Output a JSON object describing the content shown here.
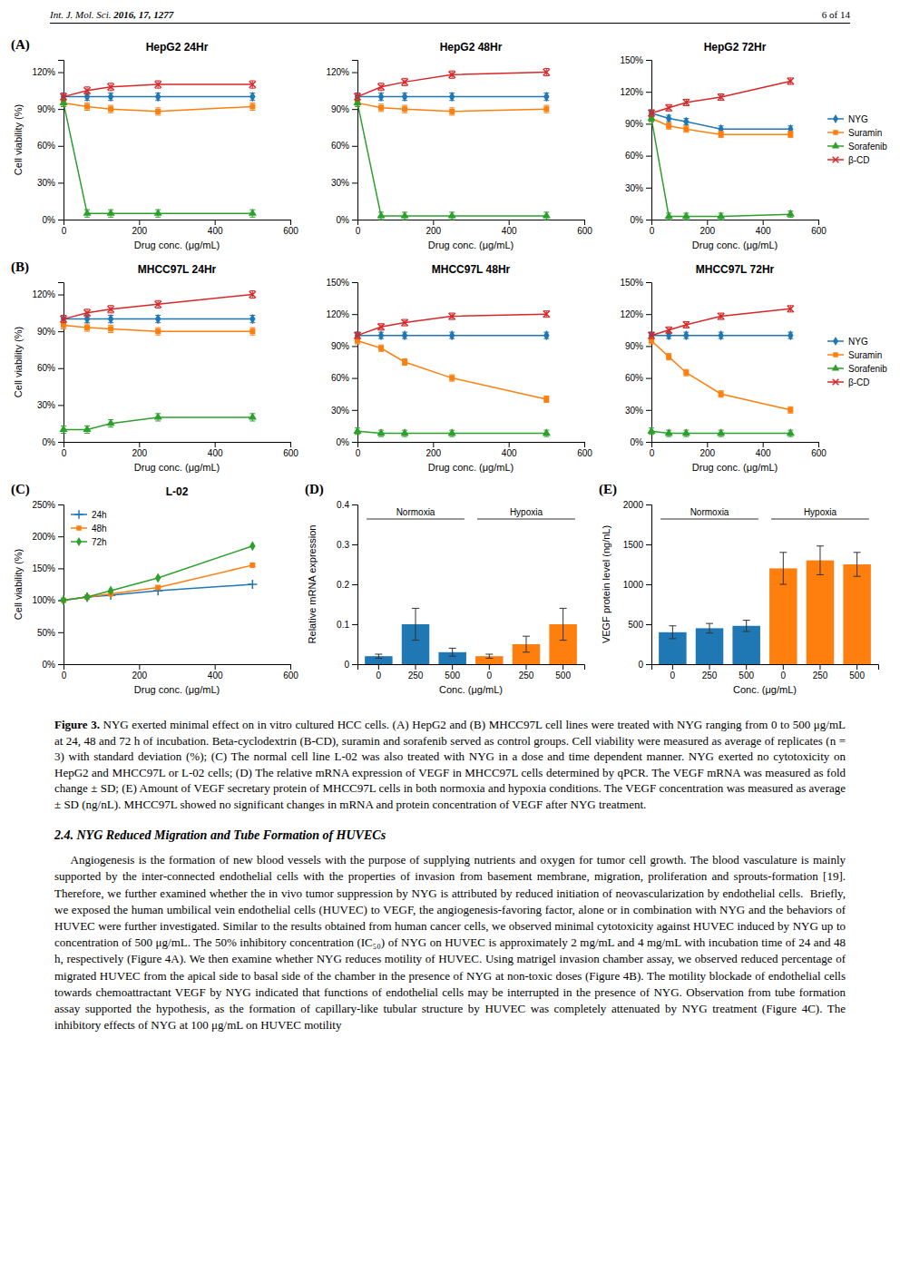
{
  "page_header": {
    "journal": "Int. J. Mol. Sci. ",
    "citation": "2016, 17, 1277",
    "page": "6 of 14"
  },
  "chart_data": [
    {
      "type": "line",
      "title": "HepG2 24Hr",
      "x_label": "Drug conc. (μg/mL)",
      "y_label": "Cell viability (%)",
      "annotations": [
        "(A)"
      ],
      "x": [
        0,
        62.5,
        125,
        250,
        500
      ],
      "xlim": [
        0,
        600
      ],
      "xticks": [
        0,
        200,
        400,
        600
      ],
      "ylim": [
        0,
        130
      ],
      "yticks": [
        {
          "value": 0,
          "label": "0%"
        },
        {
          "value": 30,
          "label": "30%"
        },
        {
          "value": 60,
          "label": "60%"
        },
        {
          "value": 90,
          "label": "90%"
        },
        {
          "value": 120,
          "label": "120%"
        }
      ],
      "series": [
        {
          "marker": "diamond",
          "values": [
            100,
            100,
            100,
            100,
            100
          ],
          "errors": [
            3,
            3,
            3,
            3,
            3
          ]
        },
        {
          "marker": "square",
          "values": [
            95,
            92,
            90,
            88,
            92
          ],
          "errors": [
            3,
            3,
            3,
            3,
            3
          ]
        },
        {
          "marker": "triangle",
          "values": [
            95,
            5,
            5,
            5,
            5
          ],
          "errors": [
            3,
            3,
            3,
            3,
            3
          ]
        },
        {
          "marker": "x",
          "values": [
            100,
            105,
            108,
            110,
            110
          ],
          "errors": [
            3,
            3,
            3,
            3,
            3
          ]
        }
      ]
    },
    {
      "type": "line",
      "title": "HepG2 48Hr",
      "x_label": "Drug conc. (μg/mL)",
      "x": [
        0,
        62.5,
        125,
        250,
        500
      ],
      "xlim": [
        0,
        600
      ],
      "xticks": [
        0,
        200,
        400,
        600
      ],
      "ylim": [
        0,
        130
      ],
      "yticks": [
        {
          "value": 0,
          "label": "0%"
        },
        {
          "value": 30,
          "label": "30%"
        },
        {
          "value": 60,
          "label": "60%"
        },
        {
          "value": 90,
          "label": "90%"
        },
        {
          "value": 120,
          "label": "120%"
        }
      ],
      "series": [
        {
          "marker": "diamond",
          "values": [
            100,
            100,
            100,
            100,
            100
          ],
          "errors": [
            3,
            3,
            3,
            3,
            3
          ]
        },
        {
          "marker": "square",
          "values": [
            95,
            91,
            90,
            88,
            90
          ],
          "errors": [
            3,
            3,
            3,
            3,
            3
          ]
        },
        {
          "marker": "triangle",
          "values": [
            95,
            3,
            3,
            3,
            3
          ],
          "errors": [
            3,
            3,
            3,
            3,
            3
          ]
        },
        {
          "marker": "x",
          "values": [
            100,
            108,
            112,
            118,
            120
          ],
          "errors": [
            3,
            3,
            3,
            3,
            3
          ]
        }
      ]
    },
    {
      "type": "line",
      "title": "HepG2 72Hr",
      "x_label": "Drug conc. (μg/mL)",
      "legend": "right",
      "x": [
        0,
        62.5,
        125,
        250,
        500
      ],
      "xlim": [
        0,
        600
      ],
      "xticks": [
        0,
        200,
        400,
        600
      ],
      "ylim": [
        0,
        150
      ],
      "yticks": [
        {
          "value": 0,
          "label": "0%"
        },
        {
          "value": 30,
          "label": "30%"
        },
        {
          "value": 60,
          "label": "60%"
        },
        {
          "value": 90,
          "label": "90%"
        },
        {
          "value": 120,
          "label": "120%"
        },
        {
          "value": 150,
          "label": "150%"
        }
      ],
      "series": [
        {
          "name": "NYG",
          "marker": "diamond",
          "values": [
            100,
            95,
            92,
            85,
            85
          ],
          "errors": [
            3,
            3,
            3,
            3,
            3
          ]
        },
        {
          "name": "Suramin",
          "marker": "square",
          "values": [
            95,
            88,
            85,
            80,
            80
          ],
          "errors": [
            3,
            3,
            3,
            3,
            3
          ]
        },
        {
          "name": "Sorafenib",
          "marker": "triangle",
          "values": [
            95,
            3,
            3,
            3,
            5
          ],
          "errors": [
            3,
            3,
            3,
            3,
            3
          ]
        },
        {
          "name": "β-CD",
          "marker": "x",
          "values": [
            100,
            105,
            110,
            115,
            130
          ],
          "errors": [
            3,
            3,
            3,
            3,
            3
          ]
        }
      ]
    },
    {
      "type": "line",
      "title": "MHCC97L 24Hr",
      "x_label": "Drug conc. (μg/mL)",
      "y_label": "Cell viability (%)",
      "annotations": [
        "(B)"
      ],
      "x": [
        0,
        62.5,
        125,
        250,
        500
      ],
      "xlim": [
        0,
        600
      ],
      "xticks": [
        0,
        200,
        400,
        600
      ],
      "ylim": [
        0,
        130
      ],
      "yticks": [
        {
          "value": 0,
          "label": "0%"
        },
        {
          "value": 30,
          "label": "30%"
        },
        {
          "value": 60,
          "label": "60%"
        },
        {
          "value": 90,
          "label": "90%"
        },
        {
          "value": 120,
          "label": "120%"
        }
      ],
      "series": [
        {
          "marker": "diamond",
          "values": [
            100,
            100,
            100,
            100,
            100
          ],
          "errors": [
            3,
            3,
            3,
            3,
            3
          ]
        },
        {
          "marker": "square",
          "values": [
            95,
            93,
            92,
            90,
            90
          ],
          "errors": [
            3,
            3,
            3,
            3,
            3
          ]
        },
        {
          "marker": "triangle",
          "values": [
            10,
            10,
            15,
            20,
            20
          ],
          "errors": [
            3,
            3,
            3,
            3,
            3
          ]
        },
        {
          "marker": "x",
          "values": [
            100,
            105,
            108,
            112,
            120
          ],
          "errors": [
            3,
            3,
            3,
            3,
            3
          ]
        }
      ]
    },
    {
      "type": "line",
      "title": "MHCC97L 48Hr",
      "x_label": "Drug conc. (μg/mL)",
      "x": [
        0,
        62.5,
        125,
        250,
        500
      ],
      "xlim": [
        0,
        600
      ],
      "xticks": [
        0,
        200,
        400,
        600
      ],
      "ylim": [
        0,
        150
      ],
      "yticks": [
        {
          "value": 0,
          "label": "0%"
        },
        {
          "value": 30,
          "label": "30%"
        },
        {
          "value": 60,
          "label": "60%"
        },
        {
          "value": 90,
          "label": "90%"
        },
        {
          "value": 120,
          "label": "120%"
        },
        {
          "value": 150,
          "label": "150%"
        }
      ],
      "series": [
        {
          "marker": "diamond",
          "values": [
            100,
            100,
            100,
            100,
            100
          ],
          "errors": [
            3,
            3,
            3,
            3,
            3
          ]
        },
        {
          "marker": "square",
          "values": [
            95,
            88,
            75,
            60,
            40
          ],
          "errors": [
            3,
            3,
            3,
            3,
            3
          ]
        },
        {
          "marker": "triangle",
          "values": [
            10,
            8,
            8,
            8,
            8
          ],
          "errors": [
            3,
            3,
            3,
            3,
            3
          ]
        },
        {
          "marker": "x",
          "values": [
            100,
            108,
            112,
            118,
            120
          ],
          "errors": [
            3,
            3,
            3,
            3,
            3
          ]
        }
      ]
    },
    {
      "type": "line",
      "title": "MHCC97L 72Hr",
      "x_label": "Drug conc. (μg/mL)",
      "legend": "right",
      "x": [
        0,
        62.5,
        125,
        250,
        500
      ],
      "xlim": [
        0,
        600
      ],
      "xticks": [
        0,
        200,
        400,
        600
      ],
      "ylim": [
        0,
        150
      ],
      "yticks": [
        {
          "value": 0,
          "label": "0%"
        },
        {
          "value": 30,
          "label": "30%"
        },
        {
          "value": 60,
          "label": "60%"
        },
        {
          "value": 90,
          "label": "90%"
        },
        {
          "value": 120,
          "label": "120%"
        },
        {
          "value": 150,
          "label": "150%"
        }
      ],
      "series": [
        {
          "name": "NYG",
          "marker": "diamond",
          "values": [
            100,
            100,
            100,
            100,
            100
          ],
          "errors": [
            3,
            3,
            3,
            3,
            3
          ]
        },
        {
          "name": "Suramin",
          "marker": "square",
          "values": [
            95,
            80,
            65,
            45,
            30
          ],
          "errors": [
            3,
            3,
            3,
            3,
            3
          ]
        },
        {
          "name": "Sorafenib",
          "marker": "triangle",
          "values": [
            10,
            8,
            8,
            8,
            8
          ],
          "errors": [
            3,
            3,
            3,
            3,
            3
          ]
        },
        {
          "name": "β-CD",
          "marker": "x",
          "values": [
            100,
            105,
            110,
            118,
            125
          ],
          "errors": [
            3,
            3,
            3,
            3,
            3
          ]
        }
      ]
    },
    {
      "type": "line",
      "title": "L-02",
      "x_label": "Drug conc. (μg/mL)",
      "y_label": "Cell viability (%)",
      "annotations": [
        "(C)"
      ],
      "legend": "top-left",
      "x": [
        0,
        62.5,
        125,
        250,
        500
      ],
      "xlim": [
        0,
        600
      ],
      "xticks": [
        0,
        200,
        400,
        600
      ],
      "ylim": [
        0,
        250
      ],
      "yticks": [
        {
          "value": 0,
          "label": "0%"
        },
        {
          "value": 50,
          "label": "50%"
        },
        {
          "value": 100,
          "label": "100%"
        },
        {
          "value": 150,
          "label": "150%"
        },
        {
          "value": 200,
          "label": "200%"
        },
        {
          "value": 250,
          "label": "250%"
        }
      ],
      "series": [
        {
          "name": "24h",
          "marker": "plus",
          "values": [
            100,
            105,
            108,
            115,
            125
          ]
        },
        {
          "name": "48h",
          "marker": "square",
          "values": [
            100,
            105,
            110,
            120,
            155
          ]
        },
        {
          "name": "72h",
          "marker": "diamond",
          "values": [
            100,
            105,
            115,
            135,
            185
          ]
        }
      ]
    },
    {
      "type": "bar",
      "x_label": "Conc. (μg/mL)",
      "y_label": "Relative mRNA expression",
      "annotations": [
        "(D)"
      ],
      "categories": [
        "0",
        "250",
        "500",
        "0",
        "250",
        "500"
      ],
      "ylim": [
        0,
        0.4
      ],
      "yticks": [
        0,
        0.1,
        0.2,
        0.3,
        0.4
      ],
      "series": [
        {
          "name": "Normoxia",
          "values": [
            0.02,
            0.1,
            0.03,
            null,
            null,
            null
          ],
          "errors": [
            0.005,
            0.04,
            0.01,
            null,
            null,
            null
          ]
        },
        {
          "name": "Hypoxia",
          "values": [
            null,
            null,
            null,
            0.02,
            0.05,
            0.1
          ],
          "errors": [
            null,
            null,
            null,
            0.005,
            0.02,
            0.04
          ]
        }
      ]
    },
    {
      "type": "bar",
      "x_label": "Conc. (μg/mL)",
      "y_label": "VEGF protein level (ng/nL)",
      "annotations": [
        "(E)"
      ],
      "categories": [
        "0",
        "250",
        "500",
        "0",
        "250",
        "500"
      ],
      "ylim": [
        0,
        2000
      ],
      "yticks": [
        0,
        500,
        1000,
        1500,
        2000
      ],
      "series": [
        {
          "name": "Normoxia",
          "values": [
            400,
            450,
            480,
            null,
            null,
            null
          ],
          "errors": [
            80,
            60,
            70,
            null,
            null,
            null
          ]
        },
        {
          "name": "Hypoxia",
          "values": [
            null,
            null,
            null,
            1200,
            1300,
            1250
          ],
          "errors": [
            null,
            null,
            null,
            200,
            180,
            150
          ]
        }
      ]
    }
  ],
  "caption": {
    "label": "Figure 3.",
    "text": " NYG exerted minimal effect on in vitro cultured HCC cells. (A) HepG2 and (B) MHCC97L cell lines were treated with NYG ranging from 0 to 500 μg/mL at 24, 48 and 72 h of incubation. Beta-cyclodextrin (B-CD), suramin and sorafenib served as control groups. Cell viability were measured as average of replicates (n = 3) with standard deviation (%); (C) The normal cell line L-02 was also treated with NYG in a dose and time dependent manner. NYG exerted no cytotoxicity on HepG2 and MHCC97L or L-02 cells; (D) The relative mRNA expression of VEGF in MHCC97L cells determined by qPCR. The VEGF mRNA was measured as fold change ± SD; (E) Amount of VEGF secretary protein of MHCC97L cells in both normoxia and hypoxia conditions. The VEGF concentration was measured as average ± SD (ng/nL). MHCC97L showed no significant changes in mRNA and protein concentration of VEGF after NYG treatment."
  },
  "section_title": "2.4. NYG Reduced Migration and Tube Formation of HUVECs",
  "paragraph": "    Angiogenesis is the formation of new blood vessels with the purpose of supplying nutrients and oxygen for tumor cell growth. The blood vasculature is mainly supported by the inter-connected endothelial cells with the properties of invasion from basement membrane, migration, proliferation and sprouts-formation [19]. Therefore, we further examined whether the in vivo tumor suppression by NYG is attributed by reduced initiation of neovascularization by endothelial cells.  Briefly, we exposed the human umbilical vein endothelial cells (HUVEC) to VEGF, the angiogenesis-favoring factor, alone or in combination with NYG and the behaviors of HUVEC were further investigated. Similar to the results obtained from human cancer cells, we observed minimal cytotoxicity against HUVEC induced by NYG up to concentration of 500 μg/mL. The 50% inhibitory concentration (IC₅₀) of NYG on HUVEC is approximately 2 mg/mL and 4 mg/mL with incubation time of 24 and 48 h, respectively (Figure 4A). We then examine whether NYG reduces motility of HUVEC. Using matrigel invasion chamber assay, we observed reduced percentage of migrated HUVEC from the apical side to basal side of the chamber in the presence of NYG at non-toxic doses (Figure 4B). The motility blockade of endothelial cells towards chemoattractant VEGF by NYG indicated that functions of endothelial cells may be interrupted in the presence of NYG. Observation from tube formation assay supported the hypothesis, as the formation of capillary-like tubular structure by HUVEC was completely attenuated by NYG treatment (Figure 4C). The inhibitory effects of NYG at 100 μg/mL on HUVEC motility"
}
